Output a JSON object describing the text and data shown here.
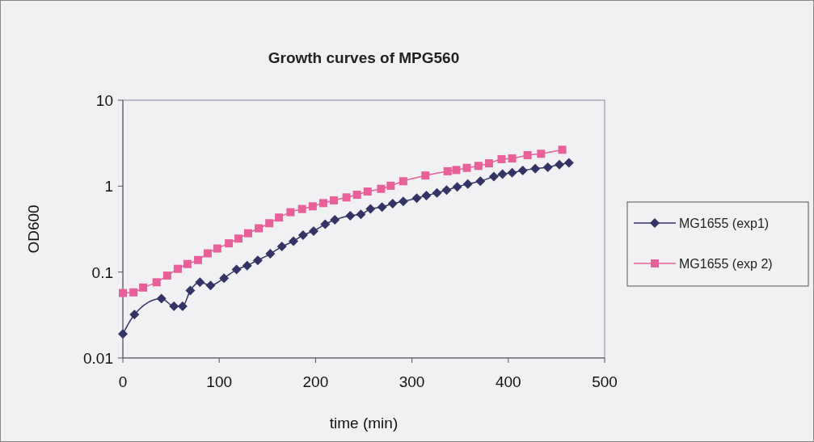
{
  "chart_data": {
    "type": "line",
    "title": "Growth curves of MPG560",
    "xlabel": "time (min)",
    "ylabel": "OD600",
    "log": "y",
    "xlim": [
      0,
      500
    ],
    "xticks": [
      0,
      100,
      200,
      300,
      400,
      500
    ],
    "ylim": [
      0.01,
      10
    ],
    "yticks": [
      0.01,
      0.1,
      1,
      10
    ],
    "grid": false,
    "legend": "right",
    "line_style": "solid",
    "series": [
      {
        "name": "MG1655 (exp1)",
        "color": "#333366",
        "marker": "diamond",
        "x": [
          0,
          12,
          40,
          53,
          62,
          70,
          80,
          91,
          105,
          118,
          129,
          140,
          153,
          165,
          177,
          187,
          198,
          210,
          220,
          236,
          247,
          257,
          269,
          280,
          291,
          305,
          315,
          326,
          336,
          347,
          358,
          371,
          385,
          394,
          404,
          415,
          428,
          441,
          453,
          463
        ],
        "values": [
          0.019,
          0.032,
          0.049,
          0.04,
          0.04,
          0.061,
          0.076,
          0.07,
          0.085,
          0.107,
          0.119,
          0.137,
          0.163,
          0.198,
          0.228,
          0.269,
          0.3,
          0.36,
          0.406,
          0.453,
          0.469,
          0.542,
          0.57,
          0.626,
          0.663,
          0.723,
          0.777,
          0.835,
          0.898,
          0.98,
          1.06,
          1.14,
          1.29,
          1.38,
          1.43,
          1.52,
          1.6,
          1.66,
          1.78,
          1.87
        ]
      },
      {
        "name": "MG1655 (exp 2)",
        "color": "#e8609a",
        "marker": "square",
        "x": [
          0,
          11,
          21,
          35,
          46,
          57,
          67,
          78,
          88,
          98,
          110,
          120,
          130,
          141,
          152,
          162,
          174,
          186,
          197,
          208,
          219,
          232,
          243,
          254,
          268,
          278,
          291,
          314,
          337,
          346,
          357,
          369,
          380,
          393,
          404,
          420,
          434,
          456
        ],
        "values": [
          0.057,
          0.058,
          0.066,
          0.076,
          0.091,
          0.109,
          0.124,
          0.138,
          0.165,
          0.188,
          0.216,
          0.245,
          0.283,
          0.323,
          0.37,
          0.431,
          0.497,
          0.542,
          0.582,
          0.635,
          0.683,
          0.739,
          0.794,
          0.865,
          0.93,
          1.01,
          1.14,
          1.33,
          1.49,
          1.54,
          1.63,
          1.72,
          1.84,
          2.06,
          2.1,
          2.29,
          2.38,
          2.65
        ]
      }
    ]
  }
}
